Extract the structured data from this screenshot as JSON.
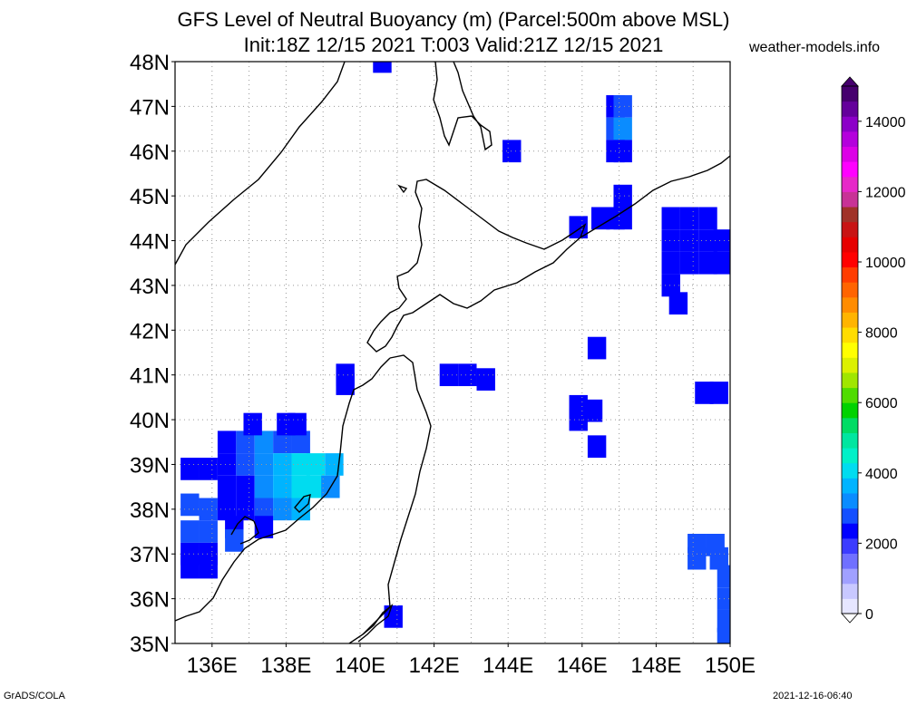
{
  "title_line1": "GFS Level of Neutral Buoyancy (m) (Parcel:500m above MSL)",
  "title_line2": "Init:18Z 12/15 2021 T:003 Valid:21Z 12/15 2021",
  "site": "weather-models.info",
  "footer_left": "GrADS/COLA",
  "footer_right": "2021-12-16-06:40",
  "lat_labels": [
    "48N",
    "47N",
    "46N",
    "45N",
    "44N",
    "43N",
    "42N",
    "41N",
    "40N",
    "39N",
    "38N",
    "37N",
    "36N",
    "35N"
  ],
  "lon_labels": [
    "136E",
    "138E",
    "140E",
    "142E",
    "144E",
    "146E",
    "148E",
    "150E"
  ],
  "colorbar": {
    "labels": [
      "0",
      "2000",
      "4000",
      "6000",
      "8000",
      "10000",
      "12000",
      "14000"
    ],
    "colors": [
      "#e6e6ff",
      "#c8c8ff",
      "#a0a0ff",
      "#7070ff",
      "#3c3cff",
      "#0000ff",
      "#1450ff",
      "#0a8cff",
      "#00b4ff",
      "#00dcf0",
      "#00f0c8",
      "#00e6a0",
      "#00dc64",
      "#00d200",
      "#50dc00",
      "#a0e600",
      "#dcf000",
      "#ffff00",
      "#ffdc00",
      "#ffb400",
      "#ff8c00",
      "#ff6400",
      "#ff3c00",
      "#ff0000",
      "#e60000",
      "#c81414",
      "#a03228",
      "#c83296",
      "#e628c8",
      "#ff00ff",
      "#dc00e6",
      "#b400dc",
      "#8c00c8",
      "#64009b",
      "#46006e"
    ]
  },
  "legend_colors": {
    "deep_blue": "#0000ff",
    "medium_blue": "#1450ff",
    "light_blue": "#0a8cff",
    "sky_blue": "#00b4ff",
    "cyan": "#00dcf0",
    "aqua": "#00f0c8"
  },
  "map": {
    "region": "Japan / Sea of Japan / NW Pacific",
    "lon_range": [
      135,
      150
    ],
    "lat_range": [
      35,
      48
    ],
    "grid": "dotted 1-degree",
    "field_cells": [
      {
        "lon": 140.6,
        "lat": 48,
        "v": 1
      },
      {
        "lon": 144.1,
        "lat": 46,
        "v": 1
      },
      {
        "lon": 146.9,
        "lat": 47,
        "v": 1
      },
      {
        "lon": 147.1,
        "lat": 47,
        "v": 2
      },
      {
        "lon": 146.9,
        "lat": 46.5,
        "v": 2
      },
      {
        "lon": 147.1,
        "lat": 46.5,
        "v": 3
      },
      {
        "lon": 146.9,
        "lat": 46,
        "v": 1
      },
      {
        "lon": 147.1,
        "lat": 46,
        "v": 1
      },
      {
        "lon": 147.1,
        "lat": 45,
        "v": 1
      },
      {
        "lon": 146.5,
        "lat": 44.5,
        "v": 1
      },
      {
        "lon": 146.9,
        "lat": 44.5,
        "v": 1
      },
      {
        "lon": 147.1,
        "lat": 44.5,
        "v": 1
      },
      {
        "lon": 145.9,
        "lat": 44.3,
        "v": 1
      },
      {
        "lon": 148.4,
        "lat": 44.5,
        "v": 1
      },
      {
        "lon": 148.9,
        "lat": 44.5,
        "v": 1
      },
      {
        "lon": 149.4,
        "lat": 44.5,
        "v": 1
      },
      {
        "lon": 148.4,
        "lat": 44,
        "v": 1
      },
      {
        "lon": 148.9,
        "lat": 44,
        "v": 1
      },
      {
        "lon": 149.4,
        "lat": 44,
        "v": 1
      },
      {
        "lon": 149.8,
        "lat": 44,
        "v": 1
      },
      {
        "lon": 148.4,
        "lat": 43.5,
        "v": 1
      },
      {
        "lon": 148.9,
        "lat": 43.5,
        "v": 1
      },
      {
        "lon": 149.4,
        "lat": 43.5,
        "v": 1
      },
      {
        "lon": 149.8,
        "lat": 43.5,
        "v": 1
      },
      {
        "lon": 148.4,
        "lat": 43,
        "v": 1
      },
      {
        "lon": 148.6,
        "lat": 42.6,
        "v": 1
      },
      {
        "lon": 146.4,
        "lat": 41.6,
        "v": 1
      },
      {
        "lon": 139.6,
        "lat": 40.8,
        "v": 1
      },
      {
        "lon": 139.6,
        "lat": 41,
        "v": 1
      },
      {
        "lon": 142.4,
        "lat": 41,
        "v": 1
      },
      {
        "lon": 142.9,
        "lat": 41,
        "v": 1
      },
      {
        "lon": 143.4,
        "lat": 40.9,
        "v": 1
      },
      {
        "lon": 145.9,
        "lat": 40.3,
        "v": 1
      },
      {
        "lon": 146.3,
        "lat": 40.2,
        "v": 1
      },
      {
        "lon": 145.9,
        "lat": 40,
        "v": 1
      },
      {
        "lon": 146.4,
        "lat": 39.4,
        "v": 1
      },
      {
        "lon": 149.3,
        "lat": 40.6,
        "v": 1
      },
      {
        "lon": 149.7,
        "lat": 40.6,
        "v": 1
      },
      {
        "lon": 149.1,
        "lat": 37.2,
        "v": 2
      },
      {
        "lon": 149.6,
        "lat": 37.2,
        "v": 2
      },
      {
        "lon": 149.1,
        "lat": 36.9,
        "v": 2
      },
      {
        "lon": 149.7,
        "lat": 36.9,
        "v": 2
      },
      {
        "lon": 149.9,
        "lat": 36.5,
        "v": 2
      },
      {
        "lon": 149.9,
        "lat": 36,
        "v": 2
      },
      {
        "lon": 149.9,
        "lat": 35.5,
        "v": 2
      },
      {
        "lon": 149.9,
        "lat": 35.1,
        "v": 2
      },
      {
        "lon": 140.9,
        "lat": 35.6,
        "v": 1
      },
      {
        "lon": 135.4,
        "lat": 38.9,
        "v": 1
      },
      {
        "lon": 135.9,
        "lat": 38.9,
        "v": 1
      },
      {
        "lon": 135.4,
        "lat": 38.1,
        "v": 2
      },
      {
        "lon": 135.9,
        "lat": 38,
        "v": 2
      },
      {
        "lon": 135.4,
        "lat": 37.5,
        "v": 2
      },
      {
        "lon": 135.9,
        "lat": 37.5,
        "v": 2
      },
      {
        "lon": 135.4,
        "lat": 37,
        "v": 1
      },
      {
        "lon": 135.9,
        "lat": 37,
        "v": 1
      },
      {
        "lon": 135.4,
        "lat": 36.7,
        "v": 1
      },
      {
        "lon": 135.9,
        "lat": 36.7,
        "v": 1
      },
      {
        "lon": 136.4,
        "lat": 39.5,
        "v": 1
      },
      {
        "lon": 136.9,
        "lat": 39.5,
        "v": 2
      },
      {
        "lon": 137.4,
        "lat": 39.5,
        "v": 3
      },
      {
        "lon": 137.9,
        "lat": 39.5,
        "v": 2
      },
      {
        "lon": 138.4,
        "lat": 39.5,
        "v": 2
      },
      {
        "lon": 137.1,
        "lat": 39.9,
        "v": 1
      },
      {
        "lon": 138.0,
        "lat": 39.9,
        "v": 1
      },
      {
        "lon": 138.3,
        "lat": 39.9,
        "v": 1
      },
      {
        "lon": 136.4,
        "lat": 39,
        "v": 1
      },
      {
        "lon": 136.9,
        "lat": 39,
        "v": 2
      },
      {
        "lon": 137.4,
        "lat": 39,
        "v": 3
      },
      {
        "lon": 137.9,
        "lat": 39,
        "v": 4
      },
      {
        "lon": 138.4,
        "lat": 39,
        "v": 5
      },
      {
        "lon": 138.8,
        "lat": 39,
        "v": 5
      },
      {
        "lon": 139.3,
        "lat": 39,
        "v": 4
      },
      {
        "lon": 136.4,
        "lat": 38.5,
        "v": 1
      },
      {
        "lon": 136.9,
        "lat": 38.5,
        "v": 1
      },
      {
        "lon": 137.4,
        "lat": 38.5,
        "v": 3
      },
      {
        "lon": 137.9,
        "lat": 38.5,
        "v": 4
      },
      {
        "lon": 138.4,
        "lat": 38.5,
        "v": 5
      },
      {
        "lon": 138.8,
        "lat": 38.5,
        "v": 5
      },
      {
        "lon": 139.2,
        "lat": 38.5,
        "v": 3
      },
      {
        "lon": 136.4,
        "lat": 38,
        "v": 1
      },
      {
        "lon": 136.9,
        "lat": 38,
        "v": 1
      },
      {
        "lon": 137.4,
        "lat": 38,
        "v": 2
      },
      {
        "lon": 137.9,
        "lat": 38,
        "v": 3
      },
      {
        "lon": 138.4,
        "lat": 38,
        "v": 4
      },
      {
        "lon": 136.6,
        "lat": 37.6,
        "v": 1
      },
      {
        "lon": 137.4,
        "lat": 37.6,
        "v": 1
      },
      {
        "lon": 136.6,
        "lat": 37.3,
        "v": 2
      }
    ]
  }
}
